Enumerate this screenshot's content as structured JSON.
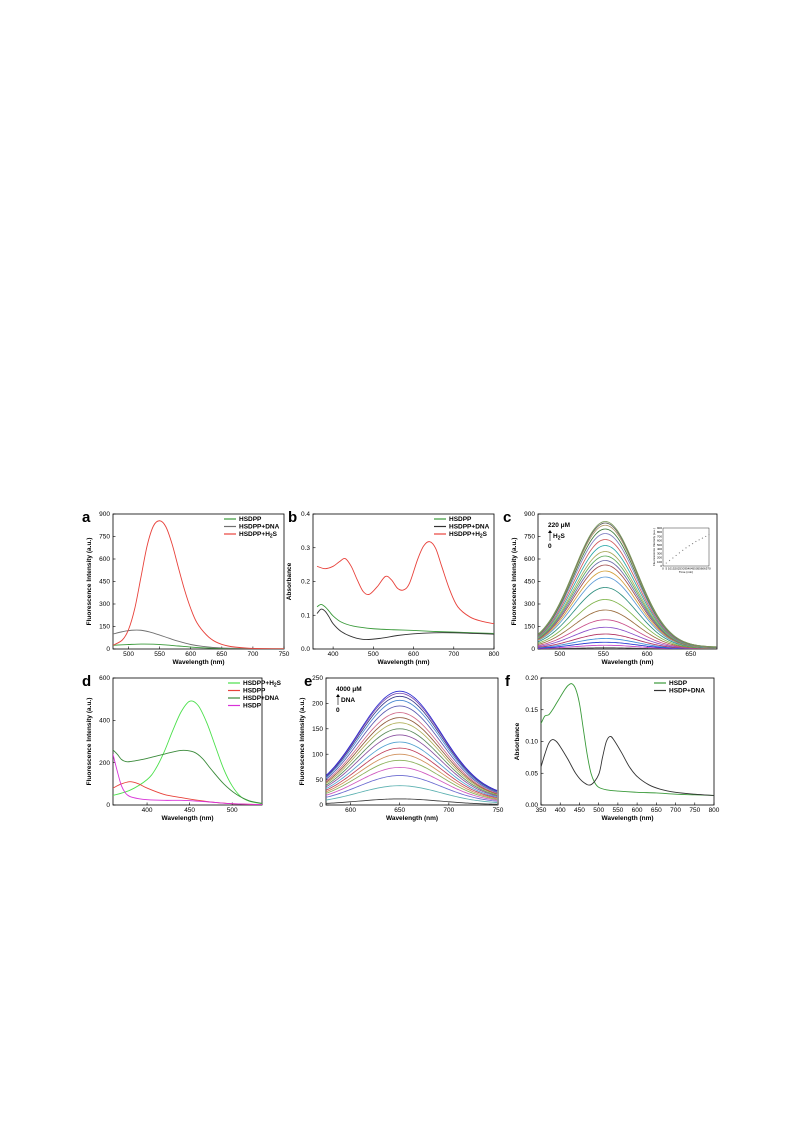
{
  "chart_data": [
    {
      "panel": "a",
      "type": "line",
      "xlabel": "Wavelength (nm)",
      "ylabel": "Fluorescence Intensity (a.u.)",
      "xlim": [
        475,
        750
      ],
      "ylim": [
        0,
        900
      ],
      "xticks": [
        500,
        550,
        600,
        650,
        700,
        750
      ],
      "yticks": [
        0,
        150,
        300,
        450,
        600,
        750,
        900
      ],
      "legend_position": "top-right",
      "series": [
        {
          "name": "HSDPP",
          "color": "#3a9a3a",
          "x": [
            475,
            500,
            520,
            540,
            560,
            580,
            600,
            620,
            650,
            700,
            750
          ],
          "y": [
            25,
            30,
            33,
            32,
            27,
            20,
            13,
            8,
            4,
            2,
            1
          ]
        },
        {
          "name": "HSDPP+DNA",
          "color": "#707070",
          "x": [
            475,
            490,
            505,
            520,
            535,
            550,
            565,
            580,
            600,
            620,
            650,
            700,
            750
          ],
          "y": [
            100,
            115,
            125,
            125,
            112,
            93,
            72,
            52,
            30,
            17,
            7,
            3,
            1
          ]
        },
        {
          "name": "HSDPP+H<sub>2</sub>S",
          "name_text": "HSDPP+H2S",
          "color": "#e8423b",
          "x": [
            475,
            490,
            500,
            510,
            520,
            530,
            540,
            550,
            560,
            570,
            580,
            590,
            600,
            610,
            625,
            640,
            660,
            690,
            720,
            750
          ],
          "y": [
            25,
            60,
            130,
            270,
            480,
            690,
            820,
            855,
            815,
            700,
            545,
            395,
            270,
            175,
            95,
            48,
            20,
            6,
            2,
            1
          ]
        }
      ]
    },
    {
      "panel": "b",
      "type": "line",
      "xlabel": "Wavelength (nm)",
      "ylabel": "Absorbance",
      "xlim": [
        350,
        800
      ],
      "ylim": [
        0.0,
        0.4
      ],
      "xticks": [
        400,
        500,
        600,
        700,
        800
      ],
      "yticks": [
        0.0,
        0.1,
        0.2,
        0.3,
        0.4
      ],
      "legend_position": "top-right",
      "series": [
        {
          "name": "HSDPP",
          "color": "#3a9a3a",
          "x": [
            360,
            370,
            380,
            390,
            400,
            420,
            450,
            500,
            550,
            600,
            650,
            700,
            750,
            800
          ],
          "y": [
            0.125,
            0.132,
            0.125,
            0.112,
            0.098,
            0.08,
            0.068,
            0.06,
            0.057,
            0.055,
            0.052,
            0.05,
            0.048,
            0.046
          ]
        },
        {
          "name": "HSDPP+DNA",
          "color": "#333333",
          "x": [
            360,
            370,
            380,
            390,
            400,
            420,
            450,
            480,
            520,
            560,
            600,
            650,
            700,
            750,
            800
          ],
          "y": [
            0.105,
            0.118,
            0.112,
            0.095,
            0.075,
            0.052,
            0.035,
            0.028,
            0.032,
            0.04,
            0.045,
            0.048,
            0.048,
            0.046,
            0.044
          ]
        },
        {
          "name": "HSDPP+H<sub>2</sub>S",
          "name_text": "HSDPP+H2S",
          "color": "#e8423b",
          "x": [
            360,
            380,
            400,
            415,
            430,
            445,
            460,
            475,
            490,
            510,
            530,
            545,
            560,
            575,
            590,
            610,
            625,
            640,
            655,
            670,
            690,
            710,
            740,
            770,
            800
          ],
          "y": [
            0.245,
            0.238,
            0.245,
            0.258,
            0.268,
            0.245,
            0.205,
            0.17,
            0.162,
            0.185,
            0.215,
            0.205,
            0.18,
            0.175,
            0.195,
            0.265,
            0.305,
            0.318,
            0.298,
            0.245,
            0.175,
            0.125,
            0.095,
            0.082,
            0.075
          ]
        }
      ]
    },
    {
      "panel": "c",
      "type": "line",
      "xlabel": "Wavelength (nm)",
      "ylabel": "Fluorescence Intensity (a.u.)",
      "xlim": [
        475,
        680
      ],
      "ylim": [
        0,
        900
      ],
      "xticks": [
        500,
        550,
        600,
        650
      ],
      "yticks": [
        0,
        150,
        300,
        450,
        600,
        750,
        900
      ],
      "annotation": {
        "top": "220 μM",
        "species": "H<sub>2</sub>S",
        "species_text": "H2S",
        "bottom": "0"
      },
      "peak_wavelength": 552,
      "series_peaks": [
        8,
        25,
        45,
        70,
        100,
        145,
        195,
        260,
        330,
        410,
        480,
        520,
        560,
        590,
        620,
        650,
        690,
        730,
        770,
        800,
        825,
        840,
        850
      ],
      "series_colors": [
        "#444444",
        "#c542c5",
        "#1b2fd0",
        "#3b8ad6",
        "#b03060",
        "#8a4fc9",
        "#c94f8a",
        "#9b6d3e",
        "#7fb44a",
        "#2f8f7f",
        "#5c9bd6",
        "#d4a03a",
        "#a14f4f",
        "#6a6aa8",
        "#5aaa5a",
        "#a8a85a",
        "#2aa8a8",
        "#d05a5a",
        "#8080c0",
        "#3c7a3c",
        "#b09a6a",
        "#606060",
        "#7a9a5a"
      ],
      "inset": {
        "x": [
          0,
          5,
          10,
          15,
          20,
          25,
          30,
          35,
          40,
          45,
          50,
          55,
          60,
          65,
          70
        ],
        "y": [
          20,
          70,
          130,
          190,
          250,
          310,
          370,
          430,
          480,
          530,
          580,
          620,
          660,
          700,
          740
        ],
        "xlim": [
          0,
          70
        ],
        "ylim": [
          0,
          900
        ],
        "xticks": [
          0,
          5,
          10,
          15,
          20,
          25,
          30,
          35,
          40,
          45,
          50,
          55,
          60,
          65,
          70
        ],
        "yticks": [
          0,
          100,
          200,
          300,
          400,
          500,
          600,
          700,
          800,
          900
        ],
        "xlabel": "Time (min)",
        "ylabel": "Fluorescence Intensity (a.u.)"
      }
    },
    {
      "panel": "d",
      "type": "line",
      "xlabel": "Wavelength (nm)",
      "ylabel": "Fluorescence Intensity (a.u.)",
      "xlim": [
        360,
        535
      ],
      "ylim": [
        0,
        600
      ],
      "xticks": [
        400,
        450,
        500
      ],
      "yticks": [
        0,
        200,
        400,
        600
      ],
      "legend_position": "top-right",
      "series": [
        {
          "name": "HSDPP+H<sub>2</sub>S",
          "name_text": "HSDPP+H2S",
          "color": "#4be04b",
          "x": [
            360,
            380,
            400,
            410,
            420,
            430,
            440,
            450,
            460,
            470,
            480,
            490,
            500,
            510,
            520,
            535
          ],
          "y": [
            45,
            70,
            120,
            170,
            250,
            350,
            440,
            490,
            470,
            390,
            280,
            170,
            90,
            40,
            18,
            6
          ]
        },
        {
          "name": "HSDPP",
          "color": "#e8423b",
          "x": [
            360,
            370,
            380,
            390,
            400,
            420,
            440,
            460,
            480,
            500,
            520,
            535
          ],
          "y": [
            80,
            100,
            110,
            100,
            80,
            50,
            35,
            22,
            12,
            6,
            3,
            2
          ]
        },
        {
          "name": "HSDP+DNA",
          "color": "#3a8a3a",
          "x": [
            360,
            365,
            370,
            375,
            380,
            390,
            400,
            420,
            440,
            455,
            465,
            475,
            490,
            505,
            520,
            535
          ],
          "y": [
            260,
            240,
            215,
            205,
            205,
            212,
            220,
            240,
            258,
            250,
            220,
            170,
            100,
            50,
            20,
            8
          ]
        },
        {
          "name": "HSDP",
          "color": "#d832d8",
          "x": [
            360,
            365,
            370,
            375,
            380,
            390,
            400,
            420,
            440,
            460,
            480,
            500,
            535
          ],
          "y": [
            240,
            160,
            90,
            55,
            40,
            30,
            25,
            22,
            22,
            18,
            12,
            6,
            2
          ]
        }
      ]
    },
    {
      "panel": "e",
      "type": "line",
      "xlabel": "Wavelength (nm)",
      "ylabel": "Fluorescence Intensity (a.u.)",
      "xlim": [
        575,
        750
      ],
      "ylim": [
        0,
        250
      ],
      "xticks": [
        600,
        650,
        700,
        750
      ],
      "yticks": [
        0,
        50,
        100,
        150,
        200,
        250
      ],
      "annotation": {
        "top": "4000 μM",
        "species": "DNA",
        "bottom": "0"
      },
      "peak_wavelength": 650,
      "series_peaks": [
        12,
        38,
        58,
        74,
        88,
        100,
        112,
        124,
        138,
        150,
        162,
        172,
        182,
        195,
        206,
        214,
        220,
        224
      ],
      "series_colors": [
        "#3a3a3a",
        "#5ab0b0",
        "#6a6ad0",
        "#d05ac0",
        "#8ab05a",
        "#d0905a",
        "#c0405a",
        "#50a0d0",
        "#8a50a0",
        "#5a8a5a",
        "#b0b05a",
        "#905a3a",
        "#d06a8a",
        "#5a5ab0",
        "#4a8ad0",
        "#3a3a8a",
        "#7a4ab0",
        "#2a2ad0"
      ]
    },
    {
      "panel": "f",
      "type": "line",
      "xlabel": "Wavelength (nm)",
      "ylabel": "Absorbance",
      "xlim": [
        350,
        800
      ],
      "ylim": [
        0.0,
        0.2
      ],
      "xticks": [
        350,
        400,
        450,
        500,
        550,
        600,
        650,
        700,
        750,
        800
      ],
      "yticks": [
        0.0,
        0.05,
        0.1,
        0.15,
        0.2
      ],
      "legend_position": "top-right",
      "series": [
        {
          "name": "HSDP",
          "color": "#3a9a3a",
          "x": [
            350,
            360,
            370,
            380,
            390,
            400,
            410,
            420,
            430,
            440,
            450,
            460,
            470,
            480,
            490,
            500,
            520,
            550,
            600,
            650,
            700,
            750,
            800
          ],
          "y": [
            0.128,
            0.14,
            0.142,
            0.15,
            0.16,
            0.17,
            0.18,
            0.188,
            0.191,
            0.183,
            0.16,
            0.12,
            0.08,
            0.05,
            0.035,
            0.028,
            0.024,
            0.022,
            0.02,
            0.019,
            0.017,
            0.016,
            0.015
          ]
        },
        {
          "name": "HSDP+DNA",
          "color": "#333333",
          "x": [
            350,
            360,
            370,
            380,
            390,
            400,
            420,
            440,
            460,
            480,
            500,
            510,
            520,
            530,
            540,
            560,
            580,
            600,
            630,
            660,
            700,
            750,
            800
          ],
          "y": [
            0.06,
            0.08,
            0.097,
            0.103,
            0.1,
            0.092,
            0.072,
            0.05,
            0.036,
            0.032,
            0.048,
            0.075,
            0.1,
            0.108,
            0.102,
            0.082,
            0.06,
            0.045,
            0.032,
            0.025,
            0.02,
            0.017,
            0.015
          ]
        }
      ]
    }
  ]
}
